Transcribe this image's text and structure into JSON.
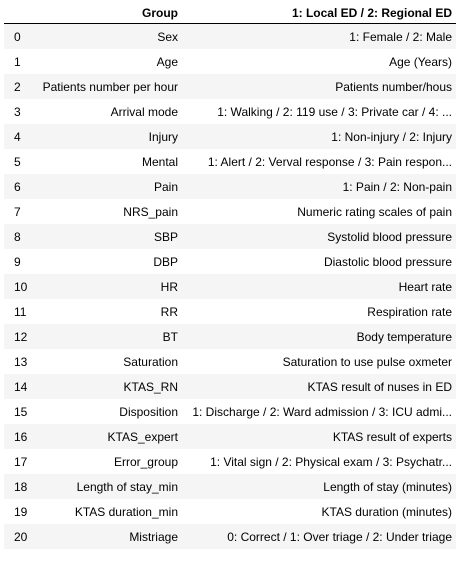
{
  "table": {
    "columns": [
      "",
      "Group",
      "1: Local ED / 2: Regional ED"
    ],
    "rows": [
      {
        "index": "0",
        "group": "Sex",
        "value": "1: Female / 2: Male"
      },
      {
        "index": "1",
        "group": "Age",
        "value": "Age (Years)"
      },
      {
        "index": "2",
        "group": "Patients number per hour",
        "value": "Patients number/hous"
      },
      {
        "index": "3",
        "group": "Arrival mode",
        "value": "1: Walking / 2: 119 use / 3: Private car / 4: ..."
      },
      {
        "index": "4",
        "group": "Injury",
        "value": "1: Non-injury / 2: Injury"
      },
      {
        "index": "5",
        "group": "Mental",
        "value": "1: Alert / 2: Verval response / 3: Pain respon..."
      },
      {
        "index": "6",
        "group": "Pain",
        "value": "1: Pain / 2: Non-pain"
      },
      {
        "index": "7",
        "group": "NRS_pain",
        "value": "Numeric rating scales of pain"
      },
      {
        "index": "8",
        "group": "SBP",
        "value": "Systolid blood pressure"
      },
      {
        "index": "9",
        "group": "DBP",
        "value": "Diastolic blood pressure"
      },
      {
        "index": "10",
        "group": "HR",
        "value": "Heart rate"
      },
      {
        "index": "11",
        "group": "RR",
        "value": "Respiration rate"
      },
      {
        "index": "12",
        "group": "BT",
        "value": "Body temperature"
      },
      {
        "index": "13",
        "group": "Saturation",
        "value": "Saturation to use pulse oxmeter"
      },
      {
        "index": "14",
        "group": "KTAS_RN",
        "value": "KTAS result of nuses in ED"
      },
      {
        "index": "15",
        "group": "Disposition",
        "value": "1: Discharge / 2: Ward admission / 3: ICU admi..."
      },
      {
        "index": "16",
        "group": "KTAS_expert",
        "value": "KTAS result of experts"
      },
      {
        "index": "17",
        "group": "Error_group",
        "value": "1: Vital sign / 2: Physical exam / 3: Psychatr..."
      },
      {
        "index": "18",
        "group": "Length of stay_min",
        "value": "Length of stay (minutes)"
      },
      {
        "index": "19",
        "group": "KTAS duration_min",
        "value": "KTAS duration (minutes)"
      },
      {
        "index": "20",
        "group": "Mistriage",
        "value": "0: Correct / 1: Over triage / 2: Under triage"
      }
    ]
  }
}
